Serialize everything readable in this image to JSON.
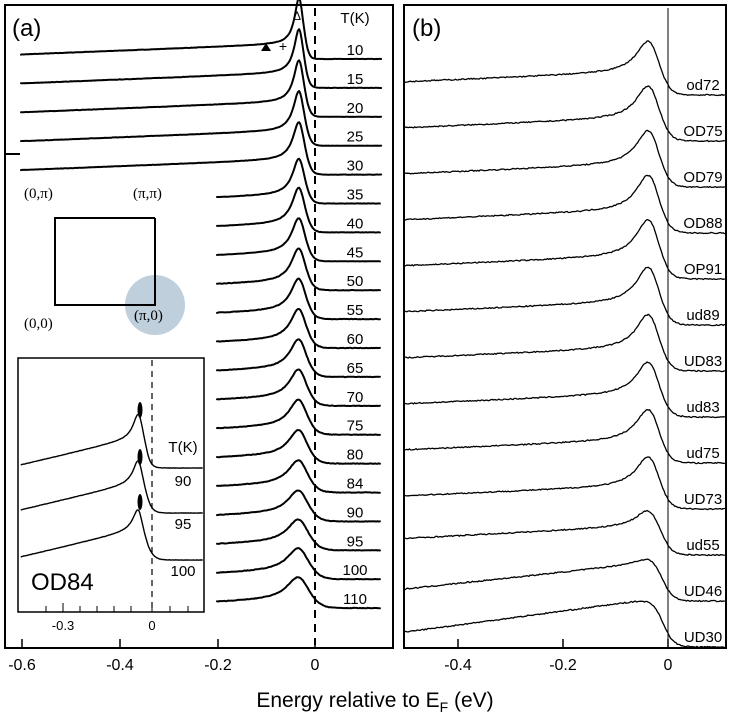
{
  "panel_a": {
    "label": "(a)",
    "temp_header": "T(K)",
    "temperatures": [
      "10",
      "15",
      "20",
      "25",
      "30",
      "35",
      "40",
      "45",
      "50",
      "55",
      "60",
      "65",
      "70",
      "75",
      "80",
      "84",
      "90",
      "95",
      "100",
      "110"
    ],
    "x_ticks": [
      "-0.6",
      "-0.4",
      "-0.2",
      "0"
    ],
    "markers": {
      "open_triangle": "Δ",
      "plus": "+"
    },
    "bz": {
      "corner_0pi": "(0,π)",
      "corner_pipi": "(π,π)",
      "corner_00": "(0,0)",
      "corner_pi0": "(π,0)",
      "circle_color": "#bfcfdc"
    },
    "inset": {
      "sample": "OD84",
      "temp_header": "T(K)",
      "temperatures": [
        "90",
        "95",
        "100"
      ],
      "x_ticks": [
        "-0.3",
        "0"
      ]
    }
  },
  "panel_b": {
    "label": "(b)",
    "samples": [
      "od72",
      "OD75",
      "OD79",
      "OD88",
      "OP91",
      "ud89",
      "UD83",
      "ud83",
      "ud75",
      "UD73",
      "ud55",
      "UD46",
      "UD30"
    ],
    "x_ticks": [
      "-0.4",
      "-0.2",
      "0"
    ]
  },
  "x_axis_label": "Energy relative to E",
  "x_axis_label_sub": "F",
  "x_axis_label_unit": " (eV)",
  "chart_data": [
    {
      "type": "line",
      "panel": "(a)",
      "x_range": [
        -0.62,
        0.14
      ],
      "fermi_level_line": 0,
      "series_labels": [
        "10",
        "15",
        "20",
        "25",
        "30",
        "35",
        "40",
        "45",
        "50",
        "55",
        "60",
        "65",
        "70",
        "75",
        "80",
        "84",
        "90",
        "95",
        "100",
        "110"
      ],
      "peak_position_approx": -0.03
    },
    {
      "type": "line",
      "panel": "(b)",
      "x_range": [
        -0.5,
        0.11
      ],
      "fermi_level_line": 0,
      "series_labels": [
        "od72",
        "OD75",
        "OD79",
        "OD88",
        "OP91",
        "ud89",
        "UD83",
        "ud83",
        "ud75",
        "UD73",
        "ud55",
        "UD46",
        "UD30"
      ]
    }
  ]
}
